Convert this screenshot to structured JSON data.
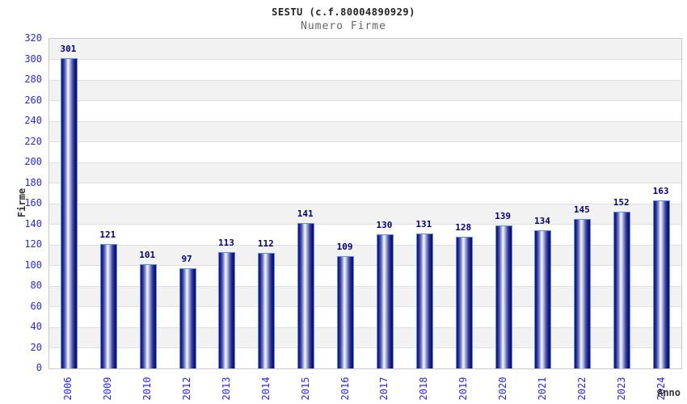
{
  "title": "SESTU (c.f.80004890929)",
  "subtitle": "Numero Firme",
  "chart_data": {
    "type": "bar",
    "categories": [
      "2006",
      "2009",
      "2010",
      "2012",
      "2013",
      "2014",
      "2015",
      "2016",
      "2017",
      "2018",
      "2019",
      "2020",
      "2021",
      "2022",
      "2023",
      "2024"
    ],
    "values": [
      301,
      121,
      101,
      97,
      113,
      112,
      141,
      109,
      130,
      131,
      128,
      139,
      134,
      145,
      152,
      163
    ],
    "title": "SESTU (c.f.80004890929)",
    "subtitle": "Numero Firme",
    "xlabel": "Anno",
    "ylabel": "Firme",
    "ylim": [
      0,
      320
    ],
    "ytick_step": 20,
    "grid": true,
    "bar_value_labels": true,
    "legend": "none"
  },
  "colors": {
    "tick_label_blue": "#2a2ad5",
    "value_label_navy": "#000070",
    "title_color": "#222222",
    "subtitle_color": "#666666",
    "axis_title_color": "#333333",
    "band_gray": "#f2f2f2",
    "gridline": "#e0e0e0",
    "plot_border": "#c8c8c8",
    "bar_border_blue": "#5b8fe0",
    "bar_dark_navy": "#12127c",
    "bar_highlight": "#eff2fb"
  }
}
